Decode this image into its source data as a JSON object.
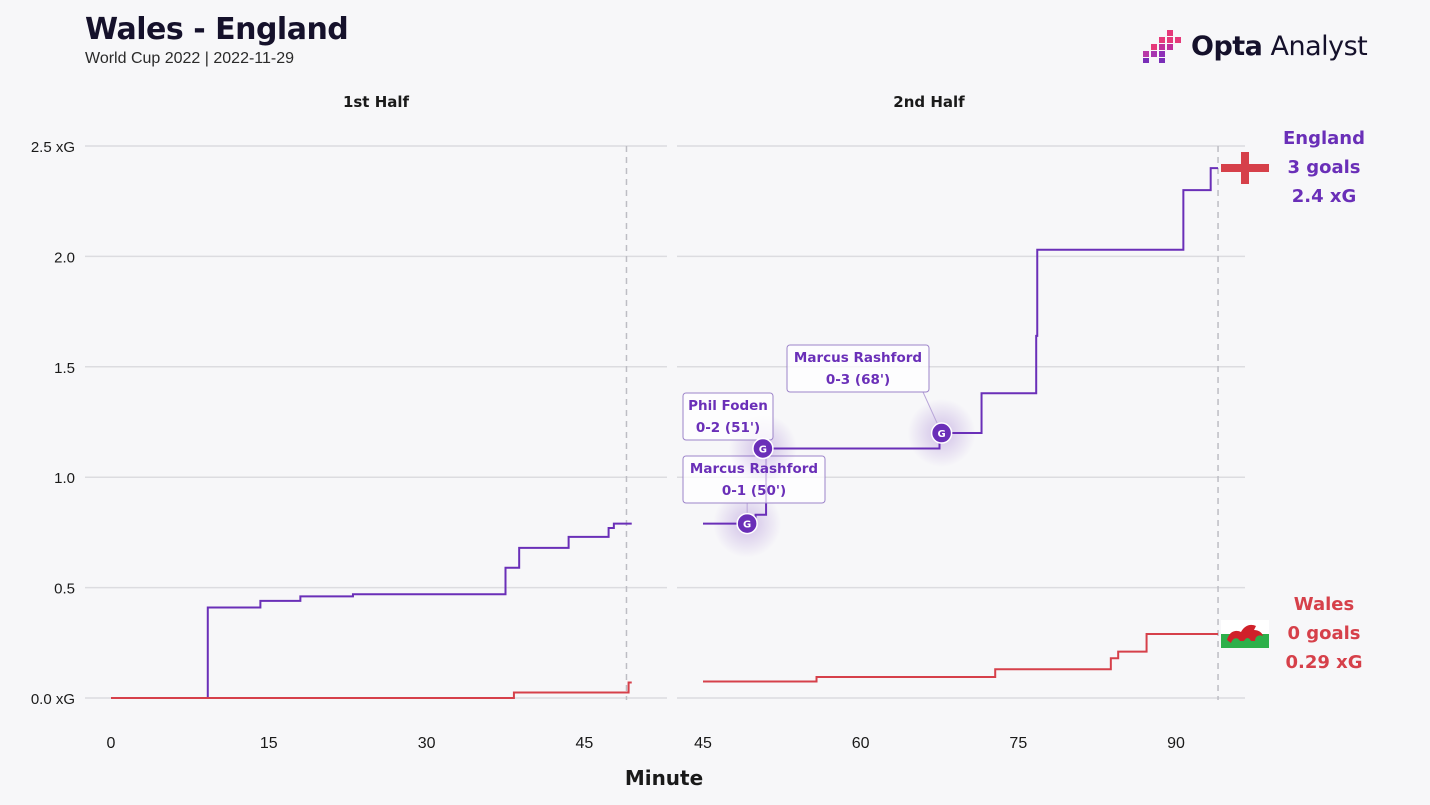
{
  "header": {
    "title": "Wales - England",
    "subtitle": "World Cup 2022 | 2022-11-29",
    "brand_bold": "Opta",
    "brand_light": " Analyst"
  },
  "colors": {
    "england": "#6a2fb8",
    "wales": "#d6404a",
    "grid": "#dcdce0",
    "text": "#1a1a1a",
    "background": "#f7f7f9"
  },
  "teams": {
    "england": {
      "name": "England",
      "goals": "3 goals",
      "xg": "2.4 xG"
    },
    "wales": {
      "name": "Wales",
      "goals": "0 goals",
      "xg": "0.29 xG"
    }
  },
  "chart_data": {
    "type": "line",
    "title": "Wales - England",
    "xlabel": "Minute",
    "ylabel": "",
    "ylim": [
      0,
      2.5
    ],
    "yticks": [
      0,
      0.5,
      1.0,
      1.5,
      2.0,
      2.5
    ],
    "ytick_labels": [
      "0.0 xG",
      "0.5",
      "1.0",
      "1.5",
      "2.0",
      "2.5 xG"
    ],
    "panels": [
      {
        "label": "1st Half",
        "xlim": [
          0,
          49.5
        ],
        "xticks": [
          0,
          15,
          30,
          45
        ],
        "end_minute": 49
      },
      {
        "label": "2nd Half",
        "xlim": [
          45,
          97
        ],
        "xticks": [
          45,
          60,
          75,
          90
        ],
        "end_minute": 94
      }
    ],
    "series": [
      {
        "name": "England",
        "half1": [
          [
            0,
            0
          ],
          [
            9.2,
            0.41
          ],
          [
            14.2,
            0.44
          ],
          [
            18,
            0.46
          ],
          [
            23,
            0.47
          ],
          [
            37.5,
            0.59
          ],
          [
            38.8,
            0.68
          ],
          [
            43.5,
            0.73
          ],
          [
            47.3,
            0.77
          ],
          [
            47.8,
            0.79
          ],
          [
            49.5,
            0.79
          ]
        ],
        "half2": [
          [
            45,
            0.79
          ],
          [
            49.5,
            0.8
          ],
          [
            50,
            0.83
          ],
          [
            51,
            1.13
          ],
          [
            67.5,
            1.16
          ],
          [
            68,
            1.2
          ],
          [
            71.5,
            1.38
          ],
          [
            76.7,
            1.64
          ],
          [
            76.8,
            2.03
          ],
          [
            90.7,
            2.3
          ],
          [
            93.3,
            2.4
          ],
          [
            94,
            2.4
          ]
        ]
      },
      {
        "name": "Wales",
        "half1": [
          [
            0,
            0
          ],
          [
            38.3,
            0.025
          ],
          [
            49.2,
            0.07
          ],
          [
            49.5,
            0.07
          ]
        ],
        "half2": [
          [
            45,
            0.075
          ],
          [
            55.8,
            0.095
          ],
          [
            72.8,
            0.13
          ],
          [
            83.8,
            0.18
          ],
          [
            84.5,
            0.21
          ],
          [
            87.2,
            0.29
          ],
          [
            94,
            0.29
          ]
        ]
      }
    ],
    "annotations": [
      {
        "player": "Marcus Rashford",
        "score": "0-1 (50')",
        "minute": 49.2,
        "xg": 0.79,
        "marker": "G"
      },
      {
        "player": "Phil Foden",
        "score": "0-2 (51')",
        "minute": 50.7,
        "xg": 1.13,
        "marker": "G"
      },
      {
        "player": "Marcus Rashford",
        "score": "0-3 (68')",
        "minute": 67.7,
        "xg": 1.2,
        "marker": "G"
      }
    ]
  }
}
